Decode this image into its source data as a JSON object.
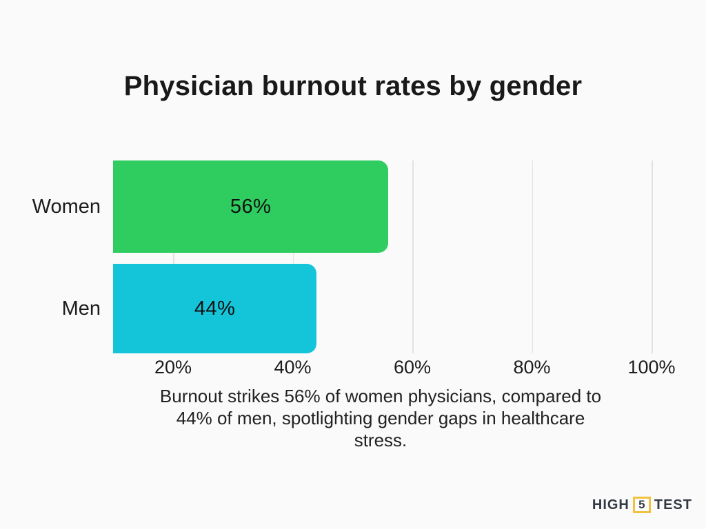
{
  "page": {
    "background": "#FAFAFA"
  },
  "chart_data": {
    "type": "bar",
    "orientation": "horizontal",
    "title": "Physician burnout rates by gender",
    "categories": [
      "Women",
      "Men"
    ],
    "values": [
      56,
      44
    ],
    "value_labels": [
      "56%",
      "44%"
    ],
    "bar_colors": [
      "#2FCD5F",
      "#14C5DA"
    ],
    "x_ticks": [
      20,
      40,
      60,
      80,
      100
    ],
    "x_tick_labels": [
      "20%",
      "40%",
      "60%",
      "80%",
      "100%"
    ],
    "xlim": [
      0,
      100
    ],
    "grid": "vertical-light",
    "legend": "none",
    "value_suffix": "%"
  },
  "caption": {
    "lines": [
      "Burnout strikes 56% of women physicians, compared to",
      "44% of men, spotlighting gender gaps in healthcare",
      "stress."
    ],
    "full_text": "Burnout strikes 56% of women physicians, compared to 44% of men, spotlighting gender gaps in healthcare stress."
  },
  "logo": {
    "word_left": "HIGH",
    "number": "5",
    "word_right": "TEST",
    "accent_color": "#F2C23E",
    "text_color": "#333A45"
  },
  "colors": {
    "background": "#FAFAFA",
    "text": "#1C1C1C",
    "gridline": "#E2E2E2",
    "women_bar": "#2FCD5F",
    "men_bar": "#14C5DA",
    "value_text": "#101010"
  }
}
